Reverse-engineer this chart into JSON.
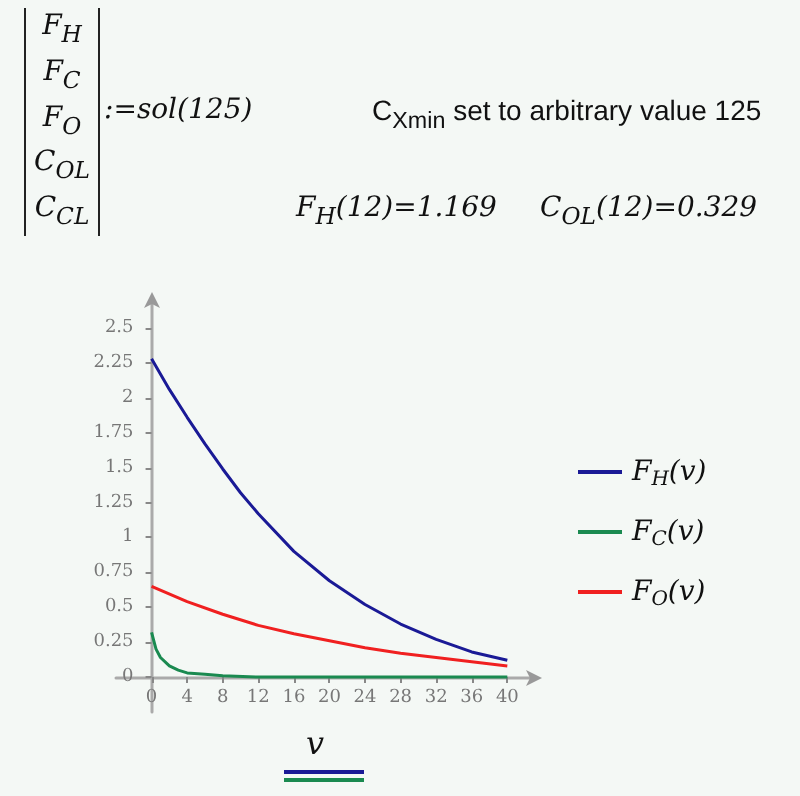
{
  "chart_data": {
    "type": "line",
    "xlabel": "v",
    "annotations": [
      "F$_{H}$\nF$_{C}$\nF$_{O}$\nC$_{OL}$\nC$_{CL}$",
      ":=sol(125)",
      "C$_{Xmin}$ set to arbitrary value 125",
      "F$_{H}$(12)=1.169",
      "C$_{OL}$(12)=0.329"
    ],
    "series": [
      {
        "name": "F$_{H}$(v)",
        "color": "#1a1a96",
        "x": [
          0,
          2,
          4,
          6,
          8,
          10,
          12,
          16,
          20,
          24,
          28,
          32,
          36,
          40
        ],
        "values": [
          2.28,
          2.06,
          1.86,
          1.67,
          1.49,
          1.32,
          1.17,
          0.9,
          0.69,
          0.52,
          0.38,
          0.27,
          0.18,
          0.12
        ]
      },
      {
        "name": "F$_{C}$(v)",
        "color": "#1a8a50",
        "x": [
          0,
          0.5,
          1,
          2,
          3,
          4,
          6,
          8,
          12,
          16,
          20,
          24,
          28,
          32,
          36,
          40
        ],
        "values": [
          0.32,
          0.2,
          0.14,
          0.08,
          0.05,
          0.03,
          0.02,
          0.01,
          0,
          0,
          0,
          0,
          0,
          0,
          0,
          0
        ]
      },
      {
        "name": "F$_{O}$(v)",
        "color": "#f02020",
        "x": [
          0,
          4,
          8,
          12,
          16,
          20,
          24,
          28,
          32,
          36,
          40
        ],
        "values": [
          0.65,
          0.54,
          0.45,
          0.37,
          0.31,
          0.26,
          0.21,
          0.17,
          0.14,
          0.11,
          0.08
        ]
      }
    ],
    "xlim": [
      -4,
      43
    ],
    "xticks": [
      0,
      4,
      8,
      12,
      16,
      20,
      24,
      28,
      32,
      36,
      40
    ],
    "ylim": [
      -0.25,
      2.7
    ],
    "yticks": [
      0,
      0.25,
      0.5,
      0.75,
      1,
      1.25,
      1.5,
      1.75,
      2,
      2.25,
      2.5
    ],
    "legend": "right",
    "marker": "none",
    "line_style": "solid"
  }
}
